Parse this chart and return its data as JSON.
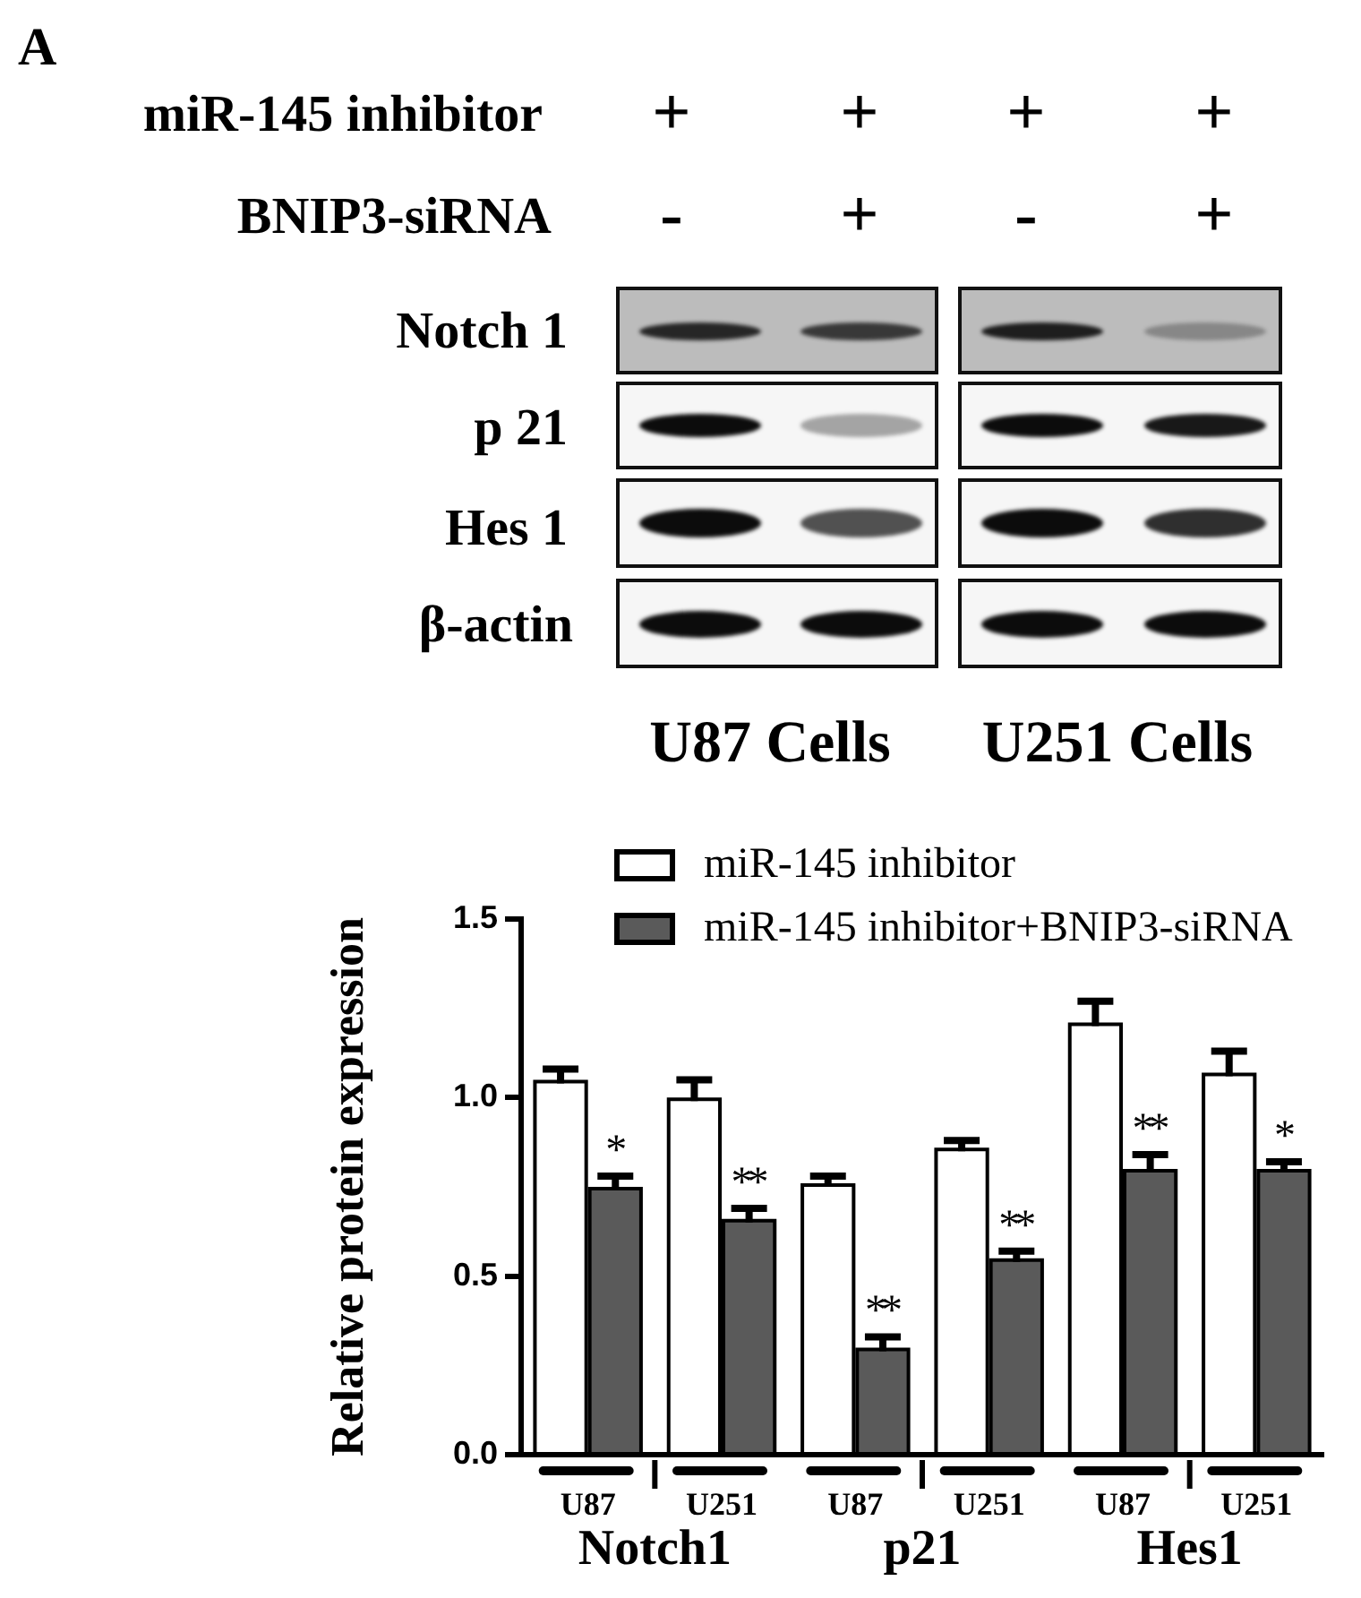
{
  "chart_data": {
    "type": "bar",
    "ylabel": "Relative protein expression",
    "categories": [
      "U87",
      "U251",
      "U87",
      "U251",
      "U87",
      "U251"
    ],
    "series": [
      {
        "name": "miR-145 inhibitor",
        "color": "#ffffff",
        "values": [
          1.04,
          0.99,
          0.75,
          0.85,
          1.2,
          1.06
        ],
        "errors": [
          [
            1.04,
            1.08
          ],
          [
            0.99,
            1.05
          ],
          [
            0.75,
            0.78
          ],
          [
            0.85,
            0.88
          ],
          [
            1.2,
            1.27
          ],
          [
            1.06,
            1.13
          ]
        ]
      },
      {
        "name": "miR-145 inhibitor+BNIP3-siRNA",
        "color": "#5a5a5a",
        "values": [
          0.74,
          0.65,
          0.29,
          0.54,
          0.79,
          0.79
        ],
        "errors": [
          [
            0.74,
            0.78
          ],
          [
            0.65,
            0.69
          ],
          [
            0.29,
            0.33
          ],
          [
            0.54,
            0.57
          ],
          [
            0.79,
            0.84
          ],
          [
            0.79,
            0.82
          ]
        ]
      }
    ],
    "ylim": [
      0,
      1.5
    ],
    "yticks": [
      {
        "value": 0,
        "label": "0.0"
      },
      0.5,
      {
        "value": 1,
        "label": "1.0"
      },
      1.5
    ],
    "legend": "top",
    "annotations": [
      "A",
      "miR-145 inhibitor",
      "+",
      "+",
      "+",
      "+",
      "BNIP3-siRNA",
      "-",
      "+",
      "-",
      "+",
      "Notch 1",
      "p 21",
      "Hes 1",
      "β-actin",
      "U87 Cells",
      "U251 Cells",
      "Notch1",
      "p21",
      "Hes1",
      "*",
      "**",
      "**",
      "**",
      "**",
      "*"
    ]
  }
}
